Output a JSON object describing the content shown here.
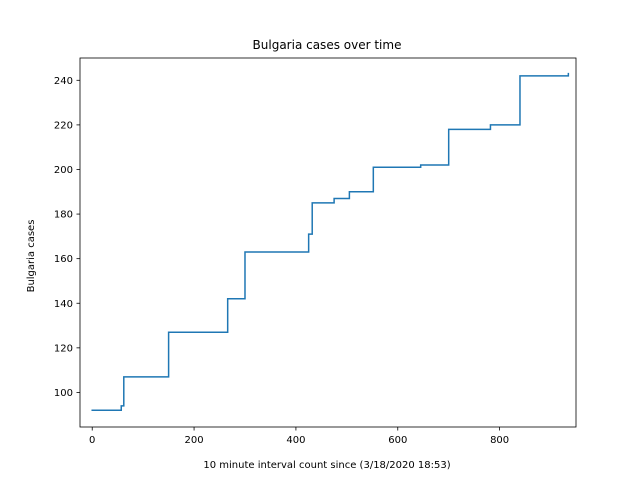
{
  "chart_data": {
    "type": "line",
    "title": "Bulgaria cases over time",
    "xlabel": "10 minute interval count since (3/18/2020 18:53)",
    "ylabel": "Bulgaria cases",
    "xlim": [
      -24,
      950
    ],
    "ylim": [
      84.5,
      250
    ],
    "xticks": [
      0,
      200,
      400,
      600,
      800
    ],
    "yticks": [
      100,
      120,
      140,
      160,
      180,
      200,
      220,
      240
    ],
    "grid": false,
    "series": [
      {
        "color": "#1f77b4",
        "step": true,
        "x": [
          0,
          57,
          62,
          150,
          266,
          300,
          425,
          432,
          475,
          505,
          552,
          645,
          700,
          782,
          840,
          935
        ],
        "y": [
          92,
          94,
          107,
          127,
          142,
          163,
          171,
          185,
          187,
          190,
          201,
          202,
          218,
          220,
          242,
          243
        ]
      }
    ]
  }
}
